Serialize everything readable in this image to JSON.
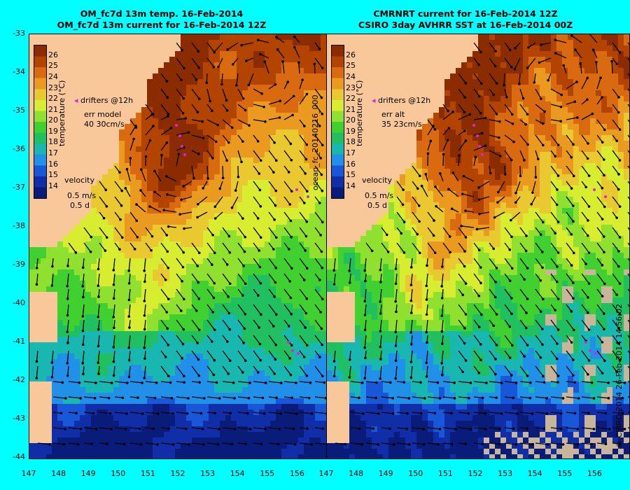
{
  "left": {
    "title_line1": "OM_fc7d 13m temp. 16-Feb-2014",
    "title_line2": "OM_fc7d 13m current for 16-Feb-2014 12Z",
    "legend_drifters": "drifters @12h",
    "legend_err_label": "err model",
    "legend_err_values": "40 30cm/s",
    "velocity_label": "velocity",
    "velocity_scale": "0.5 m/s",
    "velocity_time": "0.5 d",
    "side_label": "ocean_fc_20140216_000"
  },
  "right": {
    "title_line1": "CMRNRT current for 16-Feb-2014 12Z",
    "title_line2": "CSIRO 3day AVHRR SST at 16-Feb-2014 00Z",
    "legend_drifters": "drifters @12h",
    "legend_err_label": "err alt",
    "legend_err_values": "35 23cm/s",
    "velocity_label": "velocity",
    "velocity_scale": "0.5 m/s",
    "velocity_time": "0.5 d",
    "side_label": "© CSIRO 2014   26-Feb-2014 14:56:02"
  },
  "colorbar": {
    "label": "temperature (°C)",
    "ticks": [
      "26",
      "25",
      "24",
      "23",
      "22",
      "21",
      "20",
      "19",
      "18",
      "17",
      "16",
      "15",
      "14"
    ],
    "colors": [
      "#8b2c00",
      "#b24400",
      "#d96a10",
      "#eb9a20",
      "#e9c830",
      "#d8ec30",
      "#90e030",
      "#40d030",
      "#20c060",
      "#18b8b0",
      "#2090e8",
      "#1858d8",
      "#102ea8",
      "#0a1c7a"
    ]
  },
  "axes": {
    "y_ticks": [
      "-33",
      "-34",
      "-35",
      "-36",
      "-37",
      "-38",
      "-39",
      "-40",
      "-41",
      "-42",
      "-43",
      "-44"
    ],
    "x_ticks": [
      "147",
      "148",
      "149",
      "150",
      "151",
      "152",
      "153",
      "154",
      "155",
      "156"
    ],
    "lon_range": [
      147,
      156.5
    ],
    "lat_range": [
      -44,
      -33
    ]
  },
  "colors": {
    "background": "#00ffff",
    "land": "#f9c89a",
    "drifter": "#e020e0",
    "arrow": "#000000"
  }
}
